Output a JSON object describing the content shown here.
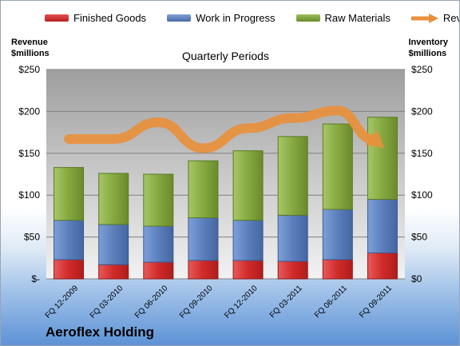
{
  "legend": {
    "items": [
      {
        "label": "Finished Goods",
        "color": "#d23030"
      },
      {
        "label": "Work in Progress",
        "color": "#5b7fbd"
      },
      {
        "label": "Raw Materials",
        "color": "#7fa03e"
      },
      {
        "label": "Revenue",
        "color": "#e8903c"
      }
    ]
  },
  "axes": {
    "left_title_line1": "Revenue",
    "left_title_line2": "$millions",
    "right_title_line1": "Inventory",
    "right_title_line2": "$millions"
  },
  "title": "Quarterly Periods",
  "company": "Aeroflex Holding",
  "chart_data": {
    "type": "bar",
    "stacked": true,
    "title": "Quarterly Periods",
    "categories": [
      "FQ 12-2009",
      "FQ 03-2010",
      "FQ 06-2010",
      "FQ 09-2010",
      "FQ 12-2010",
      "FQ 03-2011",
      "FQ 06-2011",
      "FQ 09-2011"
    ],
    "series": [
      {
        "name": "Finished Goods",
        "type": "bar",
        "axis": "right",
        "color": "#d23030",
        "values": [
          23,
          17,
          20,
          22,
          22,
          21,
          23,
          31
        ]
      },
      {
        "name": "Work in Progress",
        "type": "bar",
        "axis": "right",
        "color": "#5b7fbd",
        "values": [
          47,
          48,
          43,
          51,
          48,
          55,
          60,
          64
        ]
      },
      {
        "name": "Raw Materials",
        "type": "bar",
        "axis": "right",
        "color": "#7fa03e",
        "values": [
          63,
          61,
          62,
          68,
          83,
          94,
          102,
          98
        ]
      },
      {
        "name": "Revenue",
        "type": "line",
        "axis": "left",
        "color": "#e8903c",
        "values": [
          167,
          167,
          187,
          156,
          180,
          192,
          201,
          158
        ]
      }
    ],
    "y_left": {
      "label": "Revenue $millions",
      "ylim": [
        0,
        250
      ],
      "ticks": [
        "$-",
        "$50",
        "$100",
        "$150",
        "$200",
        "$250"
      ]
    },
    "y_right": {
      "label": "Inventory $millions",
      "ylim": [
        0,
        250
      ],
      "ticks": [
        "$0",
        "$50",
        "$100",
        "$150",
        "$200",
        "$250"
      ]
    },
    "grid": true,
    "legend_position": "top"
  }
}
